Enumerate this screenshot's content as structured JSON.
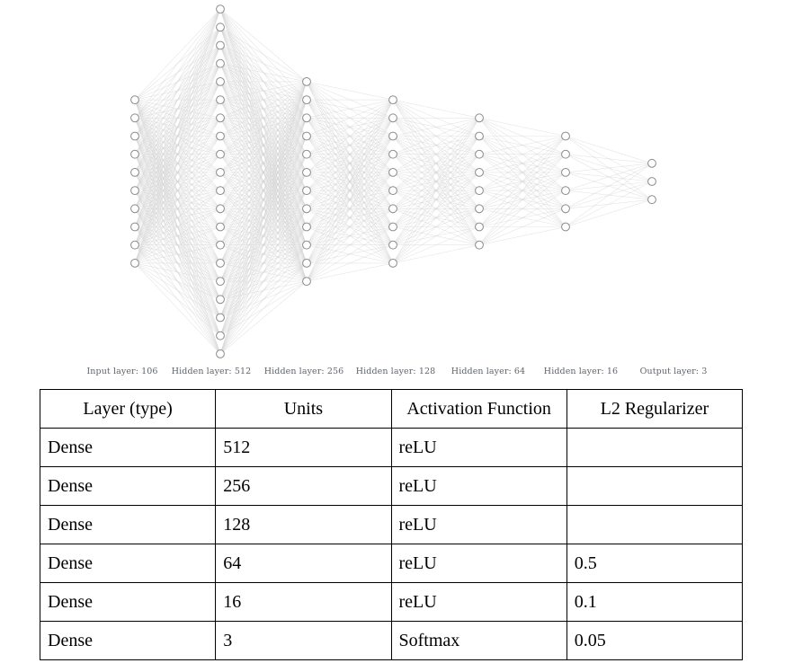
{
  "diagram": {
    "layers": [
      {
        "label": "Input layer: 106",
        "visible_nodes": 10
      },
      {
        "label": "Hidden layer: 512",
        "visible_nodes": 20
      },
      {
        "label": "Hidden layer: 256",
        "visible_nodes": 12
      },
      {
        "label": "Hidden layer: 128",
        "visible_nodes": 10
      },
      {
        "label": "Hidden layer: 64",
        "visible_nodes": 8
      },
      {
        "label": "Hidden layer: 16",
        "visible_nodes": 6
      },
      {
        "label": "Output layer: 3",
        "visible_nodes": 3
      }
    ],
    "node_color": "#ffffff",
    "node_stroke": "#8a8a8a",
    "edge_color": "#d0d0d0"
  },
  "table": {
    "headers": [
      "Layer (type)",
      "Units",
      "Activation Function",
      "L2 Regularizer"
    ],
    "rows": [
      {
        "type": "Dense",
        "units": "512",
        "activation": "reLU",
        "l2": ""
      },
      {
        "type": "Dense",
        "units": "256",
        "activation": "reLU",
        "l2": ""
      },
      {
        "type": "Dense",
        "units": "128",
        "activation": "reLU",
        "l2": ""
      },
      {
        "type": "Dense",
        "units": "64",
        "activation": "reLU",
        "l2": "0.5"
      },
      {
        "type": "Dense",
        "units": "16",
        "activation": "reLU",
        "l2": "0.1"
      },
      {
        "type": "Dense",
        "units": "3",
        "activation": "Softmax",
        "l2": "0.05"
      }
    ]
  }
}
